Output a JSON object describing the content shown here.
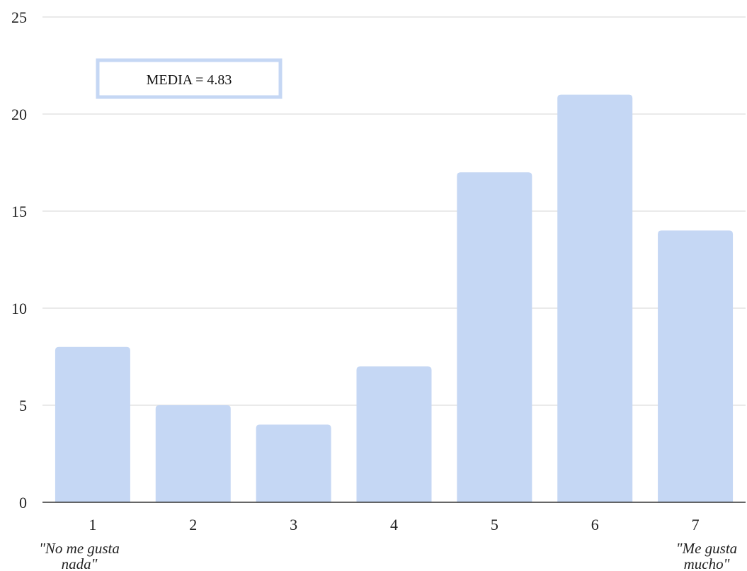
{
  "chart_data": {
    "type": "bar",
    "categories": [
      "1",
      "2",
      "3",
      "4",
      "5",
      "6",
      "7"
    ],
    "values": [
      8,
      5,
      4,
      7,
      17,
      21,
      14
    ],
    "ylim": [
      0,
      25
    ],
    "yticks": [
      "0",
      "5",
      "10",
      "15",
      "20",
      "25"
    ],
    "title": "",
    "xlabel": "",
    "ylabel": "",
    "grid": true,
    "bar_color": "#c5d7f4",
    "grid_color": "#e3e3e3",
    "annotations": {
      "low_end": [
        "\"No me gusta",
        "nada\""
      ],
      "high_end": [
        "\"Me gusta",
        "mucho\""
      ],
      "mean_label": "MEDIA = 4.83"
    }
  }
}
